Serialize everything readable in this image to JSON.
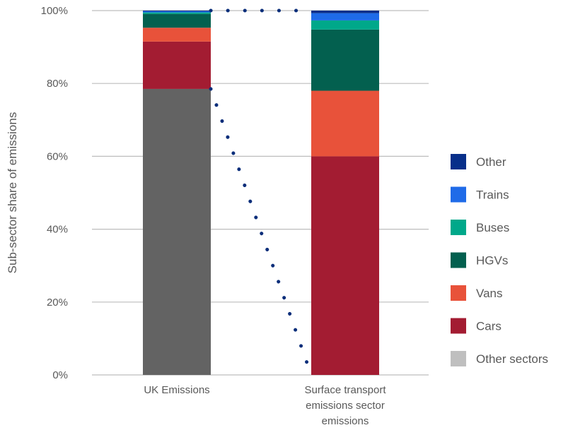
{
  "chart_data": {
    "type": "bar",
    "stacked": true,
    "stack_mode": "percent",
    "categories": [
      "UK Emissions",
      "Surface transport emissions sector emissions"
    ],
    "category_lines": [
      [
        "UK Emissions"
      ],
      [
        "Surface transport",
        "emissions sector",
        "emissions"
      ]
    ],
    "ylabel": "Sub-sector share of emissions",
    "xlabel": "",
    "ylim": [
      0,
      100
    ],
    "yticks": [
      0,
      20,
      40,
      60,
      80,
      100
    ],
    "ytick_labels": [
      "0%",
      "20%",
      "40%",
      "60%",
      "80%",
      "100%"
    ],
    "grid": true,
    "legend_position": "right",
    "series": [
      {
        "name": "Other sectors",
        "color": "#636363",
        "legend_color": "#bfbfbf",
        "values": [
          78.5,
          0
        ]
      },
      {
        "name": "Cars",
        "color": "#a31c32",
        "values": [
          13,
          60
        ]
      },
      {
        "name": "Vans",
        "color": "#e8523a",
        "values": [
          3.8,
          18
        ]
      },
      {
        "name": "HGVs",
        "color": "#03604f",
        "values": [
          3.8,
          16.8
        ]
      },
      {
        "name": "Buses",
        "color": "#00a88a",
        "values": [
          0.4,
          2.5
        ]
      },
      {
        "name": "Trains",
        "color": "#1f6be8",
        "values": [
          0.3,
          2
        ]
      },
      {
        "name": "Other",
        "color": "#082f8a",
        "values": [
          0.2,
          0.7
        ]
      }
    ],
    "connector_color": "#0b2e7a"
  }
}
